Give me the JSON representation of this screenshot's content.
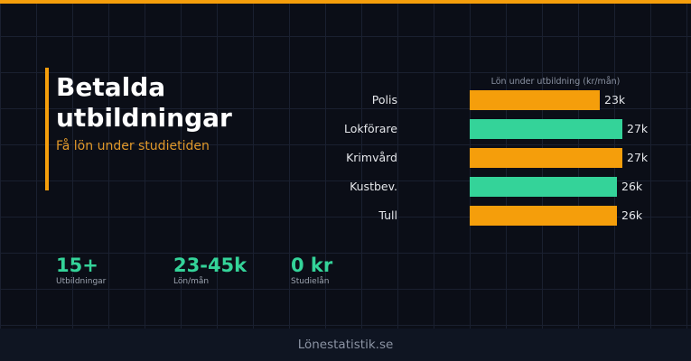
{
  "header": {
    "title": "Betalda utbildningar",
    "subtitle": "Få lön under studietiden"
  },
  "stats": [
    {
      "value": "15+",
      "label": "Utbildningar"
    },
    {
      "value": "23-45k",
      "label": "Lön/mån"
    },
    {
      "value": "0 kr",
      "label": "Studielån"
    }
  ],
  "colors": {
    "accent": "#f59e0b",
    "secondary": "#34d399",
    "background": "#0b0e17"
  },
  "footer": {
    "text": "Lönestatistik.se"
  },
  "chart_data": {
    "type": "bar",
    "orientation": "horizontal",
    "title": "Lön under utbildning (kr/mån)",
    "categories": [
      "Polis",
      "Lokförare",
      "Krimvård",
      "Kustbev.",
      "Tull"
    ],
    "values": [
      23,
      27,
      27,
      26,
      26
    ],
    "value_labels": [
      "23k",
      "27k",
      "27k",
      "26k",
      "26k"
    ],
    "bar_colors": [
      "#f59e0b",
      "#34d399",
      "#f59e0b",
      "#34d399",
      "#f59e0b"
    ],
    "unit": "k kr/mån",
    "xlabel": "",
    "ylabel": "",
    "grid": true
  }
}
